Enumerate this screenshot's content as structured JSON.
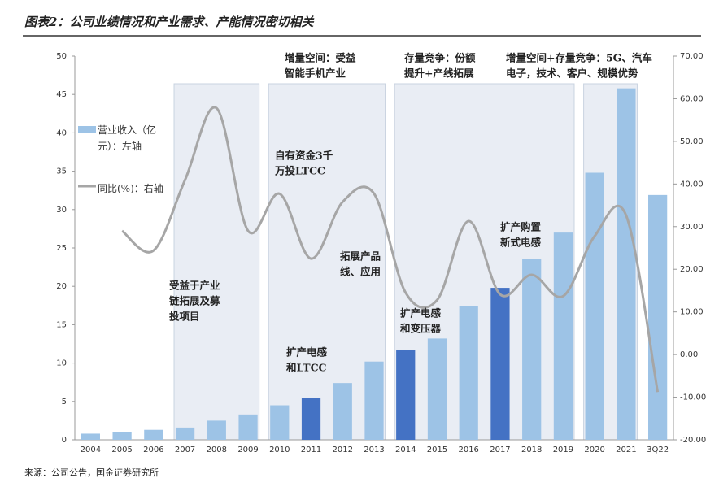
{
  "chart_data": {
    "type": "bar_line",
    "title": "图表2：公司业绩情况和产业需求、产能情况密切相关",
    "source": "来源：公司公告，国金证券研究所",
    "categories": [
      "2004",
      "2005",
      "2006",
      "2007",
      "2008",
      "2009",
      "2010",
      "2011",
      "2012",
      "2013",
      "2014",
      "2015",
      "2016",
      "2017",
      "2018",
      "2019",
      "2020",
      "2021",
      "3Q22"
    ],
    "series": [
      {
        "name": "营业收入（亿元）：左轴",
        "color": "#9dc3e6",
        "colors": [
          "#9dc3e6",
          "#9dc3e6",
          "#9dc3e6",
          "#9dc3e6",
          "#9dc3e6",
          "#9dc3e6",
          "#9dc3e6",
          "#4472c4",
          "#9dc3e6",
          "#9dc3e6",
          "#4472c4",
          "#9dc3e6",
          "#9dc3e6",
          "#4472c4",
          "#9dc3e6",
          "#9dc3e6",
          "#9dc3e6",
          "#9dc3e6",
          "#9dc3e6"
        ],
        "values": [
          0.8,
          1.0,
          1.3,
          1.6,
          2.5,
          3.3,
          4.5,
          5.5,
          7.4,
          10.2,
          11.7,
          13.2,
          17.4,
          19.8,
          23.6,
          27.0,
          34.8,
          45.8,
          31.9
        ]
      },
      {
        "name": "同比(%)：右轴",
        "color": "#a6a6a6",
        "axis": "y2",
        "values": [
          null,
          29,
          24.4,
          41,
          57.8,
          29,
          37.7,
          22.5,
          35.8,
          37.7,
          14.5,
          12.8,
          31.3,
          14.1,
          18.7,
          13.7,
          27.8,
          32.6,
          -8.8
        ]
      }
    ],
    "ylim": [
      0,
      50
    ],
    "yticks": [
      0,
      5,
      10,
      15,
      20,
      25,
      30,
      35,
      40,
      45,
      50
    ],
    "y2lim": [
      -20,
      70
    ],
    "y2ticks": [
      {
        "value": -20,
        "label": "-20.00"
      },
      {
        "value": -10,
        "label": "-10.00"
      },
      {
        "value": 0,
        "label": "0.00"
      },
      {
        "value": 10,
        "label": "10.00"
      },
      {
        "value": 20,
        "label": "20.00"
      },
      {
        "value": 30,
        "label": "30.00"
      },
      {
        "value": 40,
        "label": "40.00"
      },
      {
        "value": 50,
        "label": "50.00"
      },
      {
        "value": 60,
        "label": "60.00"
      },
      {
        "value": 70,
        "label": "70.00"
      }
    ],
    "annotations": [
      {
        "lines": [
          "增量空间：受益",
          "智能手机产业"
        ]
      },
      {
        "lines": [
          "存量竞争：份额",
          "提升+产线拓展"
        ]
      },
      {
        "lines": [
          "增量空间+存量竞争：5G、汽车",
          "电子，技术、客户、规模优势"
        ]
      },
      {
        "lines": [
          "自有资金3千",
          "万投LTCC"
        ]
      },
      {
        "lines": [
          "拓展产品",
          "线、应用"
        ]
      },
      {
        "lines": [
          "受益于产业",
          "链拓展及募",
          "投项目"
        ]
      },
      {
        "lines": [
          "扩产电感",
          "和LTCC"
        ]
      },
      {
        "lines": [
          "扩产电感",
          "和变压器"
        ]
      },
      {
        "lines": [
          "扩产购置",
          "新式电感"
        ]
      }
    ]
  }
}
